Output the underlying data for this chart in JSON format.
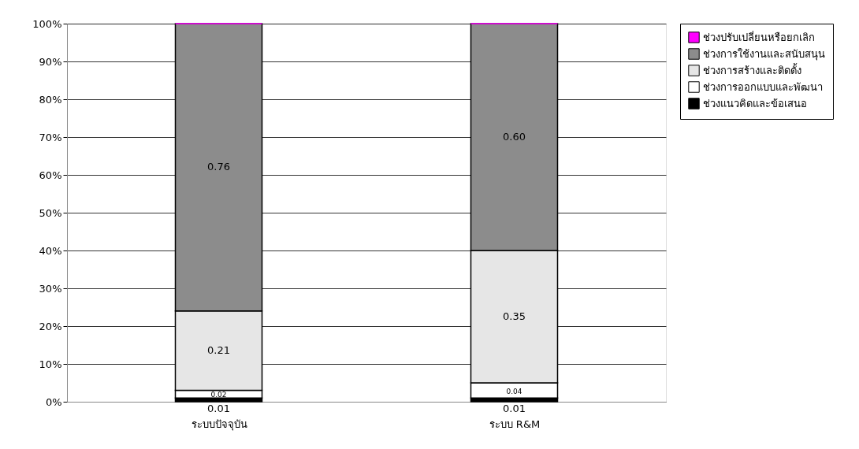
{
  "chart_data": {
    "type": "bar",
    "stacked": true,
    "categories": [
      "ระบบปัจจุบัน",
      "ระบบ R&M"
    ],
    "series": [
      {
        "name": "ช่วงแนวคิดและข้อเสนอ",
        "color": "#000000",
        "values": [
          0.01,
          0.01
        ],
        "value_labels": [
          "0.01",
          "0.01"
        ]
      },
      {
        "name": "ช่วงการออกแบบและพัฒนา",
        "color": "#ffffff",
        "values": [
          0.02,
          0.04
        ],
        "value_labels": [
          "0.02",
          "0.04"
        ]
      },
      {
        "name": "ช่วงการสร้างและติดตั้ง",
        "color": "#e6e6e6",
        "values": [
          0.21,
          0.35
        ],
        "value_labels": [
          "0.21",
          "0.35"
        ]
      },
      {
        "name": "ช่วงการใช้งานและสนับสนุน",
        "color": "#8c8c8c",
        "values": [
          0.76,
          0.6
        ],
        "value_labels": [
          "0.76",
          "0.60"
        ]
      },
      {
        "name": "ช่วงปรับเปลี่ยนหรือยกเลิก",
        "color": "#ff00ff",
        "values": [
          0,
          0
        ],
        "value_labels": [
          null,
          null
        ]
      }
    ],
    "ylim": [
      0,
      1
    ],
    "yticks": [
      {
        "value": 0,
        "label": "0%"
      },
      {
        "value": 0.1,
        "label": "10%"
      },
      {
        "value": 0.2,
        "label": "20%"
      },
      {
        "value": 0.3,
        "label": "30%"
      },
      {
        "value": 0.4,
        "label": "40%"
      },
      {
        "value": 0.5,
        "label": "50%"
      },
      {
        "value": 0.6,
        "label": "60%"
      },
      {
        "value": 0.7,
        "label": "70%"
      },
      {
        "value": 0.8,
        "label": "80%"
      },
      {
        "value": 0.9,
        "label": "90%"
      },
      {
        "value": 1,
        "label": "100%"
      }
    ],
    "grid": "y",
    "legend": "right"
  }
}
